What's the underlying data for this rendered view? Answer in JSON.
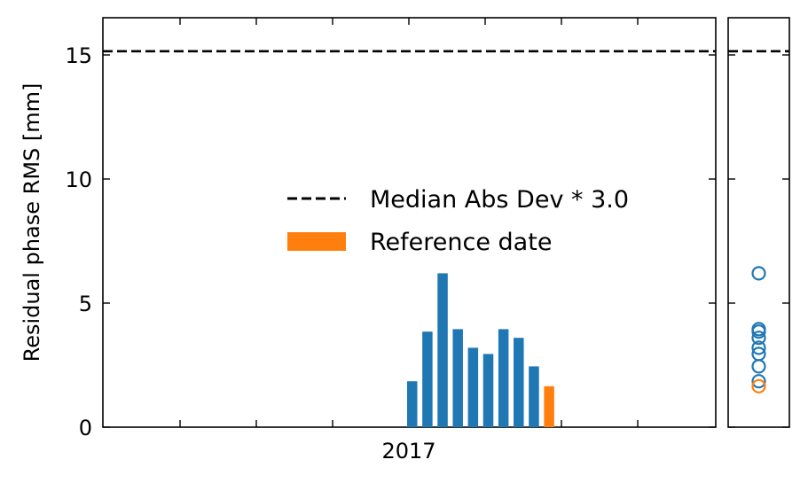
{
  "chart_data": {
    "type": "bar",
    "ylabel": "Residual phase RMS [mm]",
    "xlabel": "",
    "ylim": [
      0,
      16.5
    ],
    "yticks": [
      0,
      5,
      10,
      15
    ],
    "x_tick_labels": [
      "2017"
    ],
    "series": [
      {
        "name": "",
        "color": "#1f77b4",
        "values": [
          1.85,
          3.85,
          6.2,
          3.95,
          3.2,
          2.95,
          3.95,
          3.6,
          2.45
        ]
      }
    ],
    "reference": {
      "name": "Reference date",
      "value": 1.65,
      "color": "#ff7f0e"
    },
    "threshold": {
      "name": "Median Abs Dev * 3.0",
      "value": 15.15,
      "style": "dashed",
      "color": "#000000"
    },
    "legend": {
      "position": "center",
      "entries": [
        "Median Abs Dev * 3.0",
        "Reference date"
      ]
    },
    "side_panel": {
      "type": "scatter",
      "values": [
        6.2,
        3.95,
        3.85,
        3.6,
        3.2,
        2.95,
        2.45,
        1.85
      ],
      "reference_value": 1.65,
      "marker": "hollow-circle",
      "color": "#1f77b4",
      "reference_color": "#ff7f0e"
    },
    "grid": false
  }
}
